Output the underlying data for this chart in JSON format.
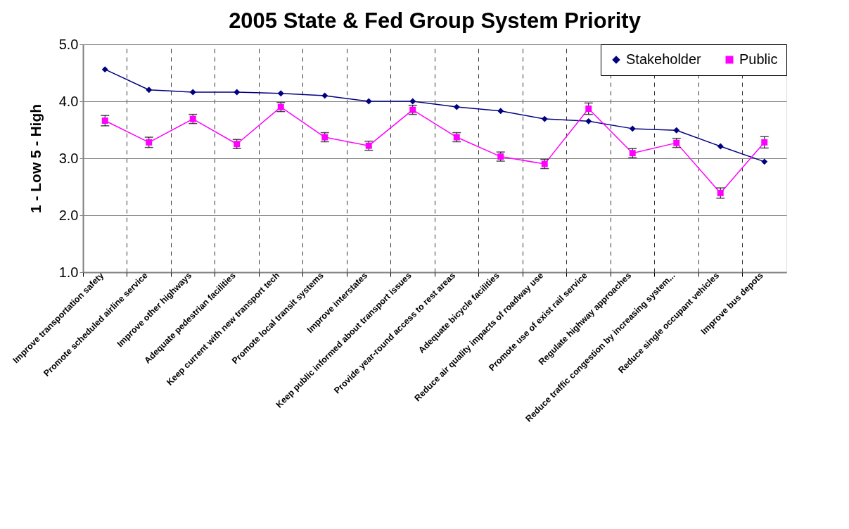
{
  "chart_data": {
    "type": "line",
    "title": "2005 State & Fed Group System Priority",
    "ylabel": "1 - Low     5 - High",
    "categories": [
      "Improve transportation safety",
      "Promote scheduled airline service",
      "Improve other highways",
      "Adequate pedestrian facilities",
      "Keep current with new transport tech",
      "Promote local transit systems",
      "Improve interstates",
      "Keep public informed about transport issues",
      "Provide year-round access to rest areas",
      "Adequate bicycle facilities",
      "Reduce air quality impacts of roadway use",
      "Promote use of exist rail service",
      "Regulate highway approaches",
      "Reduce traffic congestion by increasing system...",
      "Reduce single occupant vehicles",
      "Improve bus depots"
    ],
    "series": [
      {
        "name": "Stakeholder",
        "color": "#000080",
        "marker": "diamond",
        "values": [
          4.56,
          4.2,
          4.16,
          4.16,
          4.14,
          4.1,
          4.0,
          4.0,
          3.9,
          3.83,
          3.69,
          3.65,
          3.52,
          3.49,
          3.21,
          2.94
        ]
      },
      {
        "name": "Public",
        "color": "#ff00ff",
        "marker": "square",
        "values": [
          3.66,
          3.28,
          3.69,
          3.25,
          3.9,
          3.37,
          3.22,
          3.85,
          3.37,
          3.03,
          2.9,
          3.87,
          3.09,
          3.27,
          2.39,
          3.28
        ],
        "errors": [
          0.09,
          0.09,
          0.08,
          0.08,
          0.08,
          0.08,
          0.08,
          0.08,
          0.08,
          0.08,
          0.08,
          0.1,
          0.08,
          0.08,
          0.09,
          0.1
        ]
      }
    ],
    "ylim": [
      1,
      5
    ],
    "yticks": [
      {
        "value": 1,
        "label": "1.0"
      },
      {
        "value": 2,
        "label": "2.0"
      },
      {
        "value": 3,
        "label": "3.0"
      },
      {
        "value": 4,
        "label": "4.0"
      },
      {
        "value": 5,
        "label": "5.0"
      }
    ],
    "grid": true,
    "legend": "top right",
    "line_style": "solid"
  }
}
